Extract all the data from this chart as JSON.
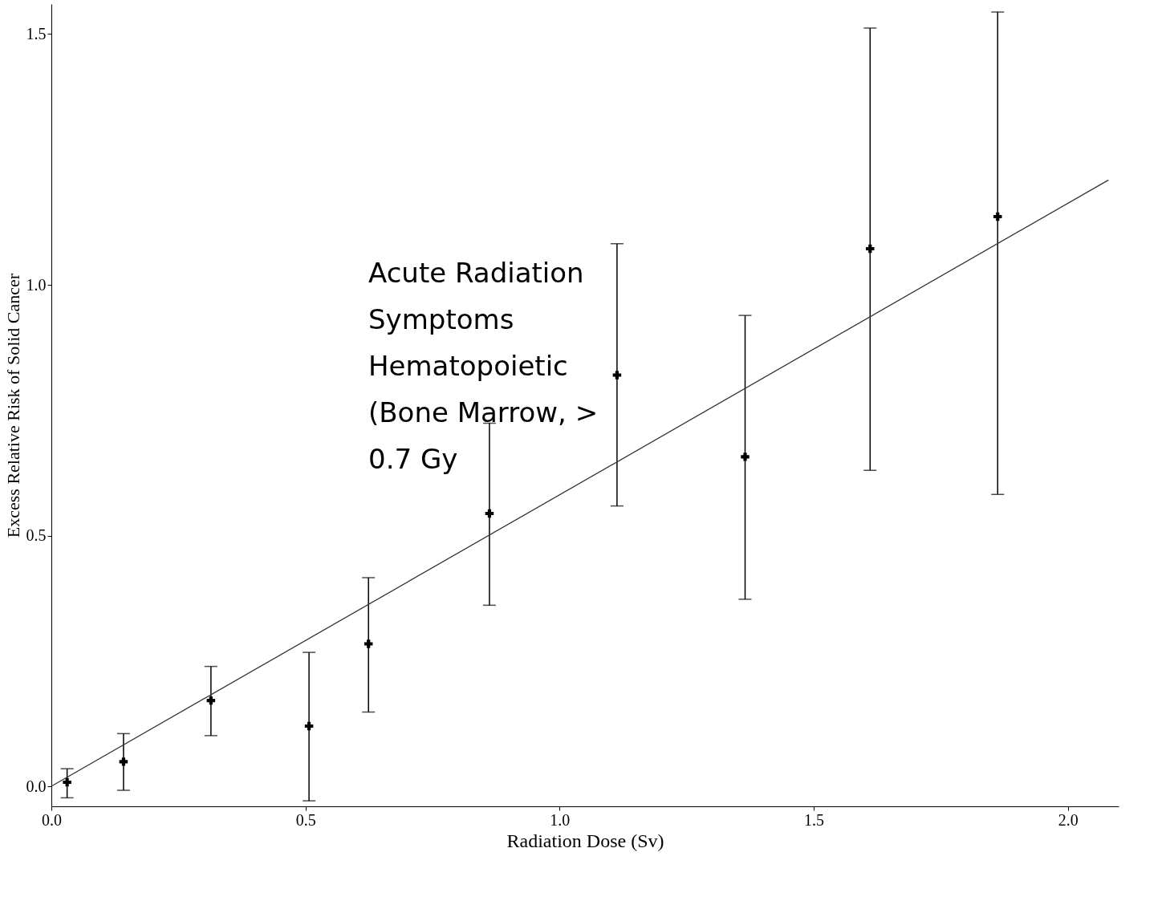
{
  "chart_data": {
    "type": "scatter",
    "xlabel": "Radiation Dose (Sv)",
    "ylabel": "Excess Relative Risk of Solid Cancer",
    "xlim": [
      0,
      2.1
    ],
    "ylim": [
      -0.04,
      1.56
    ],
    "xticks": [
      {
        "value": 0,
        "label": "0.0"
      },
      {
        "value": 0.5,
        "label": "0.5"
      },
      {
        "value": 1,
        "label": "1.0"
      },
      {
        "value": 1.5,
        "label": "1.5"
      },
      {
        "value": 2,
        "label": "2.0"
      }
    ],
    "yticks": [
      {
        "value": 0,
        "label": "0.0"
      },
      {
        "value": 0.5,
        "label": "0.5"
      },
      {
        "value": 1,
        "label": "1.0"
      },
      {
        "value": 1.5,
        "label": "1.5"
      }
    ],
    "grid": false,
    "series": [
      {
        "marker": "cross",
        "color": "#000000",
        "x": [
          0.031,
          0.142,
          0.314,
          0.507,
          0.624,
          0.862,
          1.113,
          1.365,
          1.611,
          1.862
        ],
        "values": [
          0.008,
          0.049,
          0.171,
          0.12,
          0.284,
          0.544,
          0.82,
          0.657,
          1.072,
          1.136
        ],
        "errors": [
          [
            -0.023,
            0.035
          ],
          [
            -0.008,
            0.105
          ],
          [
            0.101,
            0.239
          ],
          [
            -0.029,
            0.267
          ],
          [
            0.148,
            0.416
          ],
          [
            0.361,
            0.724
          ],
          [
            0.559,
            1.082
          ],
          [
            0.373,
            0.939
          ],
          [
            0.63,
            1.512
          ],
          [
            0.582,
            1.544
          ]
        ]
      },
      {
        "type": "line",
        "marker": "none",
        "color": "#333333",
        "x": [
          0,
          2.08
        ],
        "values": [
          0,
          1.209
        ]
      }
    ],
    "annotations": [
      "Acute Radiation\nSymptoms\n\nHematopoietic\n(Bone Marrow, >\n0.7 Gy"
    ]
  }
}
